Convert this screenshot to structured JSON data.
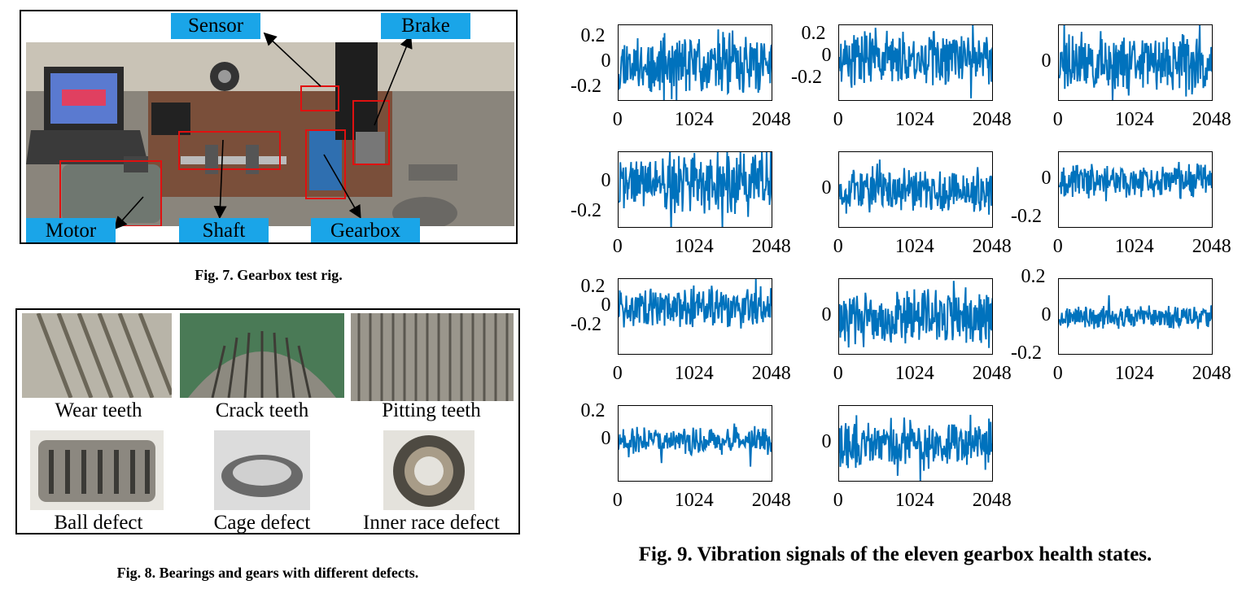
{
  "figure7": {
    "labels": {
      "sensor": "Sensor",
      "brake": "Brake",
      "motor": "Motor",
      "shaft": "Shaft",
      "gearbox": "Gearbox"
    },
    "caption": "Fig. 7. Gearbox test rig."
  },
  "figure8": {
    "labels": [
      "Wear teeth",
      "Crack teeth",
      "Pitting teeth",
      "Ball defect",
      "Cage defect",
      "Inner race defect"
    ],
    "caption": "Fig. 8. Bearings and gears with different defects."
  },
  "figure9": {
    "caption": "Fig. 9. Vibration signals of the eleven gearbox health states.",
    "line_color": "#0072bd"
  },
  "chart_data": [
    {
      "type": "line",
      "x_ticks": [
        "0",
        "1024",
        "2048"
      ],
      "y_ticks": [
        "0.2",
        "0",
        "-0.2"
      ],
      "xlim": [
        0,
        2048
      ],
      "ylim": [
        -0.3,
        0.3
      ],
      "amplitude": 0.28,
      "seed": 11
    },
    {
      "type": "line",
      "x_ticks": [
        "0",
        "1024",
        "2048"
      ],
      "y_ticks": [
        "0.2",
        "0",
        "-0.2"
      ],
      "xlim": [
        0,
        2048
      ],
      "ylim": [
        -0.4,
        0.3
      ],
      "amplitude": 0.3,
      "seed": 23
    },
    {
      "type": "line",
      "x_ticks": [
        "0",
        "1024",
        "2048"
      ],
      "y_ticks": [
        "0"
      ],
      "xlim": [
        0,
        2048
      ],
      "ylim": [
        -0.3,
        0.3
      ],
      "amplitude": 0.28,
      "seed": 37
    },
    {
      "type": "line",
      "x_ticks": [
        "0",
        "1024",
        "2048"
      ],
      "y_ticks": [
        "0",
        "-0.2"
      ],
      "xlim": [
        0,
        2048
      ],
      "ylim": [
        -0.3,
        0.2
      ],
      "amplitude": 0.24,
      "seed": 41
    },
    {
      "type": "line",
      "x_ticks": [
        "0",
        "1024",
        "2048"
      ],
      "y_ticks": [
        "0"
      ],
      "xlim": [
        0,
        2048
      ],
      "ylim": [
        -0.3,
        0.3
      ],
      "amplitude": 0.22,
      "seed": 53
    },
    {
      "type": "line",
      "x_ticks": [
        "0",
        "1024",
        "2048"
      ],
      "y_ticks": [
        "0",
        "-0.2"
      ],
      "xlim": [
        0,
        2048
      ],
      "ylim": [
        -0.25,
        0.15
      ],
      "amplitude": 0.1,
      "seed": 67
    },
    {
      "type": "line",
      "x_ticks": [
        "0",
        "1024",
        "2048"
      ],
      "y_ticks": [
        "0.2",
        "0",
        "-0.2"
      ],
      "xlim": [
        0,
        2048
      ],
      "ylim": [
        -0.5,
        0.3
      ],
      "amplitude": 0.25,
      "seed": 71
    },
    {
      "type": "line",
      "x_ticks": [
        "0",
        "1024",
        "2048"
      ],
      "y_ticks": [
        "0"
      ],
      "xlim": [
        0,
        2048
      ],
      "ylim": [
        -0.3,
        0.3
      ],
      "amplitude": 0.26,
      "seed": 83
    },
    {
      "type": "line",
      "x_ticks": [
        "0",
        "1024",
        "2048"
      ],
      "y_ticks": [
        "0.2",
        "0",
        "-0.2"
      ],
      "xlim": [
        0,
        2048
      ],
      "ylim": [
        -0.2,
        0.2
      ],
      "amplitude": 0.07,
      "seed": 97
    },
    {
      "type": "line",
      "x_ticks": [
        "0",
        "1024",
        "2048"
      ],
      "y_ticks": [
        "0.2",
        "0"
      ],
      "xlim": [
        0,
        2048
      ],
      "ylim": [
        -0.3,
        0.25
      ],
      "amplitude": 0.12,
      "seed": 101
    },
    {
      "type": "line",
      "x_ticks": [
        "0",
        "1024",
        "2048"
      ],
      "y_ticks": [
        "0"
      ],
      "xlim": [
        0,
        2048
      ],
      "ylim": [
        -0.3,
        0.3
      ],
      "amplitude": 0.22,
      "seed": 113
    }
  ]
}
